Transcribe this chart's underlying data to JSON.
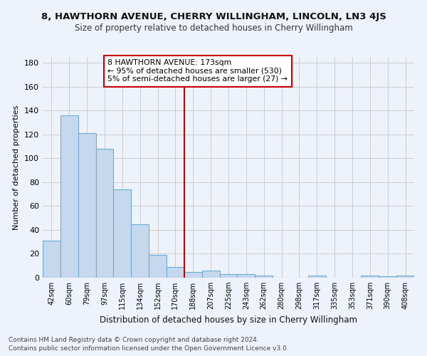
{
  "title": "8, HAWTHORN AVENUE, CHERRY WILLINGHAM, LINCOLN, LN3 4JS",
  "subtitle": "Size of property relative to detached houses in Cherry Willingham",
  "xlabel": "Distribution of detached houses by size in Cherry Willingham",
  "ylabel": "Number of detached properties",
  "footnote1": "Contains HM Land Registry data © Crown copyright and database right 2024.",
  "footnote2": "Contains public sector information licensed under the Open Government Licence v3.0.",
  "bar_labels": [
    "42sqm",
    "60sqm",
    "79sqm",
    "97sqm",
    "115sqm",
    "134sqm",
    "152sqm",
    "170sqm",
    "188sqm",
    "207sqm",
    "225sqm",
    "243sqm",
    "262sqm",
    "280sqm",
    "298sqm",
    "317sqm",
    "335sqm",
    "353sqm",
    "371sqm",
    "390sqm",
    "408sqm"
  ],
  "bar_values": [
    31,
    136,
    121,
    108,
    74,
    45,
    19,
    9,
    5,
    6,
    3,
    3,
    2,
    0,
    0,
    2,
    0,
    0,
    2,
    1,
    2
  ],
  "bar_color": "#c5d8ed",
  "bar_edge_color": "#6aaed6",
  "vline_x": 7.5,
  "vline_color": "#cc0000",
  "annotation_title": "8 HAWTHORN AVENUE: 173sqm",
  "annotation_line1": "← 95% of detached houses are smaller (530)",
  "annotation_line2": "5% of semi-detached houses are larger (27) →",
  "annotation_box_color": "#cc0000",
  "ylim": [
    0,
    185
  ],
  "yticks": [
    0,
    20,
    40,
    60,
    80,
    100,
    120,
    140,
    160,
    180
  ],
  "bg_color": "#eef2fa",
  "grid_color": "#cccccc"
}
